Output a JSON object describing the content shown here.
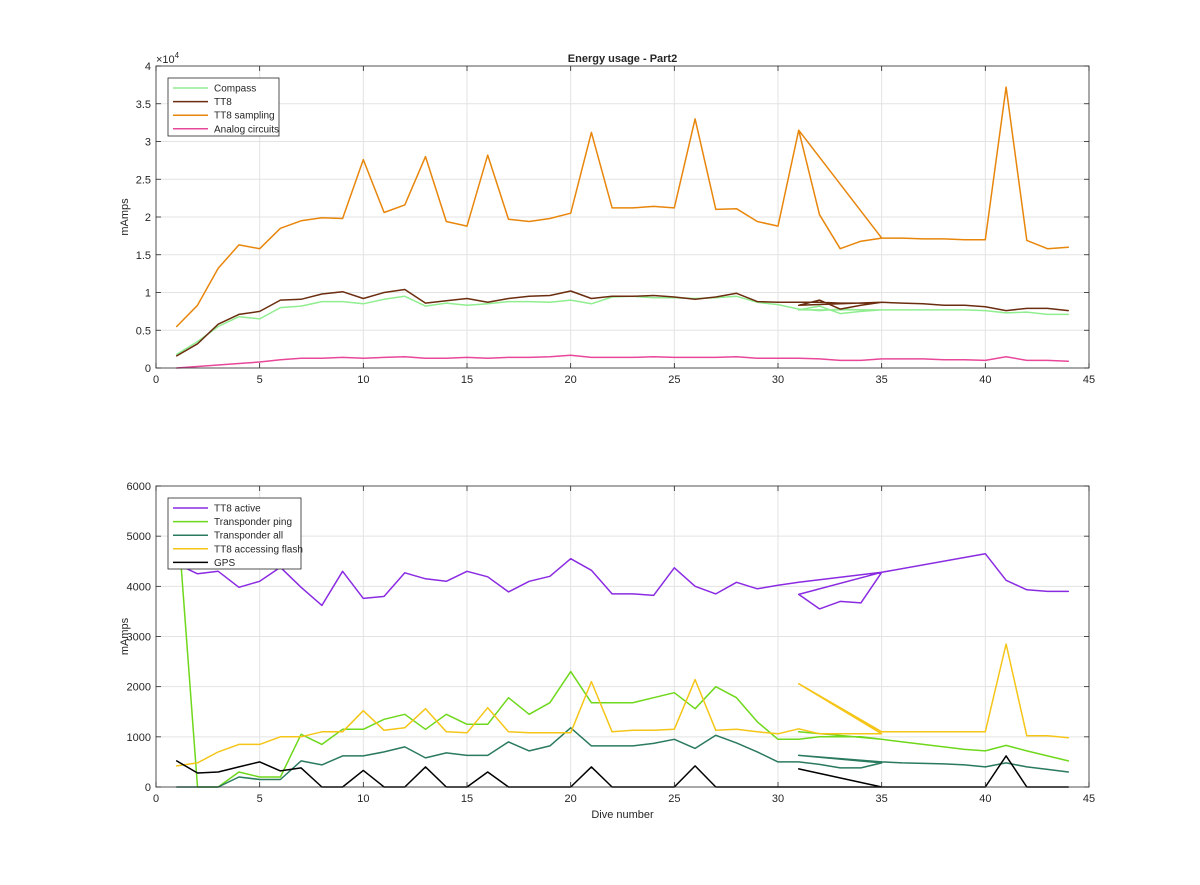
{
  "chart_data": [
    {
      "type": "line",
      "title": "Energy usage - Part2",
      "xlabel": "",
      "ylabel": "mAmps",
      "exponent_label": "×10",
      "exponent_power": "4",
      "xlim": [
        0,
        45
      ],
      "ylim": [
        0,
        40000
      ],
      "xticks": [
        0,
        5,
        10,
        15,
        20,
        25,
        30,
        35,
        40,
        45
      ],
      "yticks": [
        0,
        5000,
        10000,
        15000,
        20000,
        25000,
        30000,
        35000,
        40000
      ],
      "ytick_labels": [
        "0",
        "0.5",
        "1",
        "1.5",
        "2",
        "2.5",
        "3",
        "3.5",
        "4"
      ],
      "grid": true,
      "legend_position": "top-left",
      "series": [
        {
          "name": "Compass",
          "color": "#90ee90",
          "x": [
            1,
            2,
            3,
            4,
            5,
            6,
            7,
            8,
            9,
            10,
            11,
            12,
            13,
            14,
            15,
            16,
            17,
            18,
            19,
            20,
            21,
            22,
            23,
            24,
            25,
            26,
            27,
            28,
            29,
            30,
            31,
            32,
            33,
            34,
            35,
            31,
            32,
            33,
            34,
            35,
            36,
            37,
            38,
            39,
            40,
            41,
            42,
            43,
            44
          ],
          "y": [
            1800,
            3500,
            5500,
            6800,
            6500,
            8000,
            8200,
            8800,
            8800,
            8500,
            9100,
            9500,
            8200,
            8600,
            8300,
            8500,
            8800,
            8800,
            8700,
            9000,
            8500,
            9400,
            9500,
            9300,
            9300,
            9200,
            9300,
            9500,
            8700,
            8400,
            7800,
            7600,
            7800,
            7700,
            7700,
            7700,
            8200,
            7200,
            7500,
            7700,
            7700,
            7700,
            7700,
            7700,
            7600,
            7300,
            7400,
            7100,
            7100
          ]
        },
        {
          "name": "TT8",
          "color": "#6b2d0f",
          "x": [
            1,
            2,
            3,
            4,
            5,
            6,
            7,
            8,
            9,
            10,
            11,
            12,
            13,
            14,
            15,
            16,
            17,
            18,
            19,
            20,
            21,
            22,
            23,
            24,
            25,
            26,
            27,
            28,
            29,
            30,
            31,
            32,
            33,
            34,
            35,
            31,
            32,
            33,
            34,
            35,
            36,
            37,
            38,
            39,
            40,
            41,
            42,
            43,
            44
          ],
          "y": [
            1600,
            3200,
            5800,
            7100,
            7500,
            9000,
            9100,
            9800,
            10100,
            9200,
            10000,
            10400,
            8600,
            8900,
            9200,
            8700,
            9200,
            9500,
            9600,
            10200,
            9200,
            9500,
            9500,
            9600,
            9400,
            9100,
            9400,
            9900,
            8800,
            8700,
            8700,
            8700,
            8600,
            8600,
            8700,
            8300,
            9000,
            7800,
            8300,
            8700,
            8600,
            8500,
            8300,
            8300,
            8100,
            7600,
            7900,
            7900,
            7600
          ]
        },
        {
          "name": "TT8 sampling",
          "color": "#e8860c",
          "x": [
            1,
            2,
            3,
            4,
            5,
            6,
            7,
            8,
            9,
            10,
            11,
            12,
            13,
            14,
            15,
            16,
            17,
            18,
            19,
            20,
            21,
            22,
            23,
            24,
            25,
            26,
            27,
            28,
            29,
            30,
            31,
            32,
            33,
            34,
            35,
            31,
            35,
            36,
            37,
            38,
            39,
            40,
            41,
            42,
            43,
            44
          ],
          "y": [
            5500,
            8300,
            13200,
            16300,
            15800,
            18500,
            19500,
            19900,
            19800,
            27600,
            20600,
            21600,
            28000,
            19400,
            18800,
            28200,
            19700,
            19400,
            19800,
            20500,
            31200,
            21200,
            21200,
            21400,
            21200,
            33000,
            21000,
            21100,
            19400,
            18800,
            31500,
            20300,
            15800,
            16800,
            17200,
            31500,
            17200,
            17200,
            17100,
            17100,
            17000,
            17000,
            37200,
            16900,
            15800,
            16000
          ]
        },
        {
          "name": "Analog circuits",
          "color": "#e8479a",
          "x": [
            1,
            2,
            3,
            4,
            5,
            6,
            7,
            8,
            9,
            10,
            11,
            12,
            13,
            14,
            15,
            16,
            17,
            18,
            19,
            20,
            21,
            22,
            23,
            24,
            25,
            26,
            27,
            28,
            29,
            30,
            31,
            32,
            33,
            34,
            35,
            36,
            37,
            38,
            39,
            40,
            41,
            42,
            43,
            44
          ],
          "y": [
            0,
            200,
            400,
            600,
            800,
            1100,
            1300,
            1300,
            1400,
            1300,
            1400,
            1500,
            1300,
            1300,
            1400,
            1300,
            1400,
            1400,
            1500,
            1700,
            1400,
            1400,
            1400,
            1500,
            1400,
            1400,
            1400,
            1500,
            1300,
            1300,
            1300,
            1200,
            1000,
            1000,
            1200,
            1200,
            1200,
            1100,
            1100,
            1000,
            1500,
            1000,
            1000,
            900
          ]
        }
      ]
    },
    {
      "type": "line",
      "title": "",
      "xlabel": "Dive number",
      "ylabel": "mAmps",
      "xlim": [
        0,
        45
      ],
      "ylim": [
        0,
        6000
      ],
      "xticks": [
        0,
        5,
        10,
        15,
        20,
        25,
        30,
        35,
        40,
        45
      ],
      "yticks": [
        0,
        1000,
        2000,
        3000,
        4000,
        5000,
        6000
      ],
      "ytick_labels": [
        "0",
        "1000",
        "2000",
        "3000",
        "4000",
        "5000",
        "6000"
      ],
      "grid": true,
      "legend_position": "top-left",
      "series": [
        {
          "name": "TT8 active",
          "color": "#8a2be2",
          "x": [
            1,
            2,
            3,
            4,
            5,
            6,
            7,
            8,
            9,
            10,
            11,
            12,
            13,
            14,
            15,
            16,
            17,
            18,
            19,
            20,
            21,
            22,
            23,
            24,
            25,
            26,
            27,
            28,
            29,
            30,
            31,
            35,
            31,
            32,
            33,
            34,
            35,
            40,
            41,
            42,
            43,
            44
          ],
          "y": [
            4450,
            4250,
            4300,
            3980,
            4100,
            4380,
            3980,
            3620,
            4300,
            3760,
            3800,
            4270,
            4150,
            4100,
            4300,
            4190,
            3890,
            4100,
            4200,
            4550,
            4320,
            3850,
            3850,
            3820,
            4370,
            4000,
            3850,
            4080,
            3950,
            4020,
            4080,
            4280,
            3840,
            3550,
            3700,
            3670,
            4280,
            4650,
            4120,
            3930,
            3900,
            3900
          ]
        },
        {
          "name": "Transponder ping",
          "color": "#6ed81c",
          "x": [
            1,
            2,
            3,
            4,
            5,
            6,
            7,
            8,
            9,
            10,
            11,
            12,
            13,
            14,
            15,
            16,
            17,
            18,
            19,
            20,
            21,
            22,
            23,
            24,
            25,
            26,
            27,
            28,
            29,
            30,
            31,
            32,
            33,
            34,
            35,
            31,
            35,
            36,
            37,
            38,
            39,
            40,
            41,
            42,
            43,
            44
          ],
          "y": [
            5600,
            0,
            0,
            300,
            200,
            200,
            1050,
            850,
            1150,
            1150,
            1350,
            1450,
            1150,
            1450,
            1250,
            1250,
            1780,
            1450,
            1680,
            2300,
            1680,
            1680,
            1680,
            1780,
            1880,
            1560,
            2000,
            1780,
            1300,
            950,
            950,
            1000,
            1000,
            1000,
            950,
            1100,
            950,
            900,
            850,
            800,
            750,
            720,
            830,
            720,
            620,
            520
          ]
        },
        {
          "name": "Transponder all",
          "color": "#2a7a5e",
          "x": [
            1,
            2,
            3,
            4,
            5,
            6,
            7,
            8,
            9,
            10,
            11,
            12,
            13,
            14,
            15,
            16,
            17,
            18,
            19,
            20,
            21,
            22,
            23,
            24,
            25,
            26,
            27,
            28,
            29,
            30,
            31,
            32,
            33,
            34,
            35,
            31,
            35,
            36,
            37,
            38,
            39,
            40,
            41,
            42,
            43,
            44
          ],
          "y": [
            0,
            0,
            0,
            200,
            150,
            150,
            520,
            440,
            620,
            620,
            700,
            800,
            580,
            680,
            630,
            630,
            900,
            720,
            820,
            1180,
            820,
            820,
            820,
            870,
            950,
            770,
            1030,
            880,
            700,
            500,
            500,
            450,
            380,
            380,
            480,
            630,
            500,
            480,
            470,
            460,
            440,
            400,
            480,
            400,
            350,
            300
          ]
        },
        {
          "name": "TT8 accessing flash",
          "color": "#f5c518",
          "x": [
            1,
            2,
            3,
            4,
            5,
            6,
            7,
            8,
            9,
            10,
            11,
            12,
            13,
            14,
            15,
            16,
            17,
            18,
            19,
            20,
            21,
            22,
            23,
            24,
            25,
            26,
            27,
            28,
            29,
            30,
            31,
            32,
            33,
            34,
            35,
            31,
            35,
            36,
            37,
            38,
            39,
            40,
            41,
            42,
            43,
            44
          ],
          "y": [
            420,
            480,
            700,
            850,
            850,
            1000,
            1000,
            1100,
            1100,
            1520,
            1130,
            1180,
            1560,
            1100,
            1080,
            1580,
            1100,
            1080,
            1080,
            1080,
            2100,
            1100,
            1130,
            1130,
            1150,
            2140,
            1130,
            1150,
            1100,
            1060,
            1160,
            1060,
            1060,
            1060,
            1060,
            2060,
            1100,
            1100,
            1100,
            1100,
            1100,
            1100,
            2850,
            1020,
            1020,
            980
          ]
        },
        {
          "name": "GPS",
          "color": "#000000",
          "x": [
            1,
            2,
            3,
            4,
            5,
            6,
            7,
            8,
            9,
            10,
            11,
            12,
            13,
            14,
            15,
            16,
            17,
            18,
            19,
            20,
            21,
            22,
            23,
            24,
            25,
            26,
            27,
            28,
            29,
            30,
            31,
            32,
            33,
            34,
            35,
            31,
            35,
            36,
            37,
            38,
            39,
            40,
            41,
            42,
            43,
            44
          ],
          "y": [
            520,
            280,
            300,
            400,
            500,
            320,
            380,
            0,
            0,
            330,
            0,
            0,
            400,
            0,
            0,
            300,
            0,
            0,
            0,
            0,
            400,
            0,
            0,
            0,
            0,
            420,
            0,
            0,
            0,
            0,
            0,
            0,
            0,
            0,
            0,
            360,
            0,
            0,
            0,
            0,
            0,
            0,
            620,
            0,
            0,
            0
          ]
        }
      ]
    }
  ]
}
